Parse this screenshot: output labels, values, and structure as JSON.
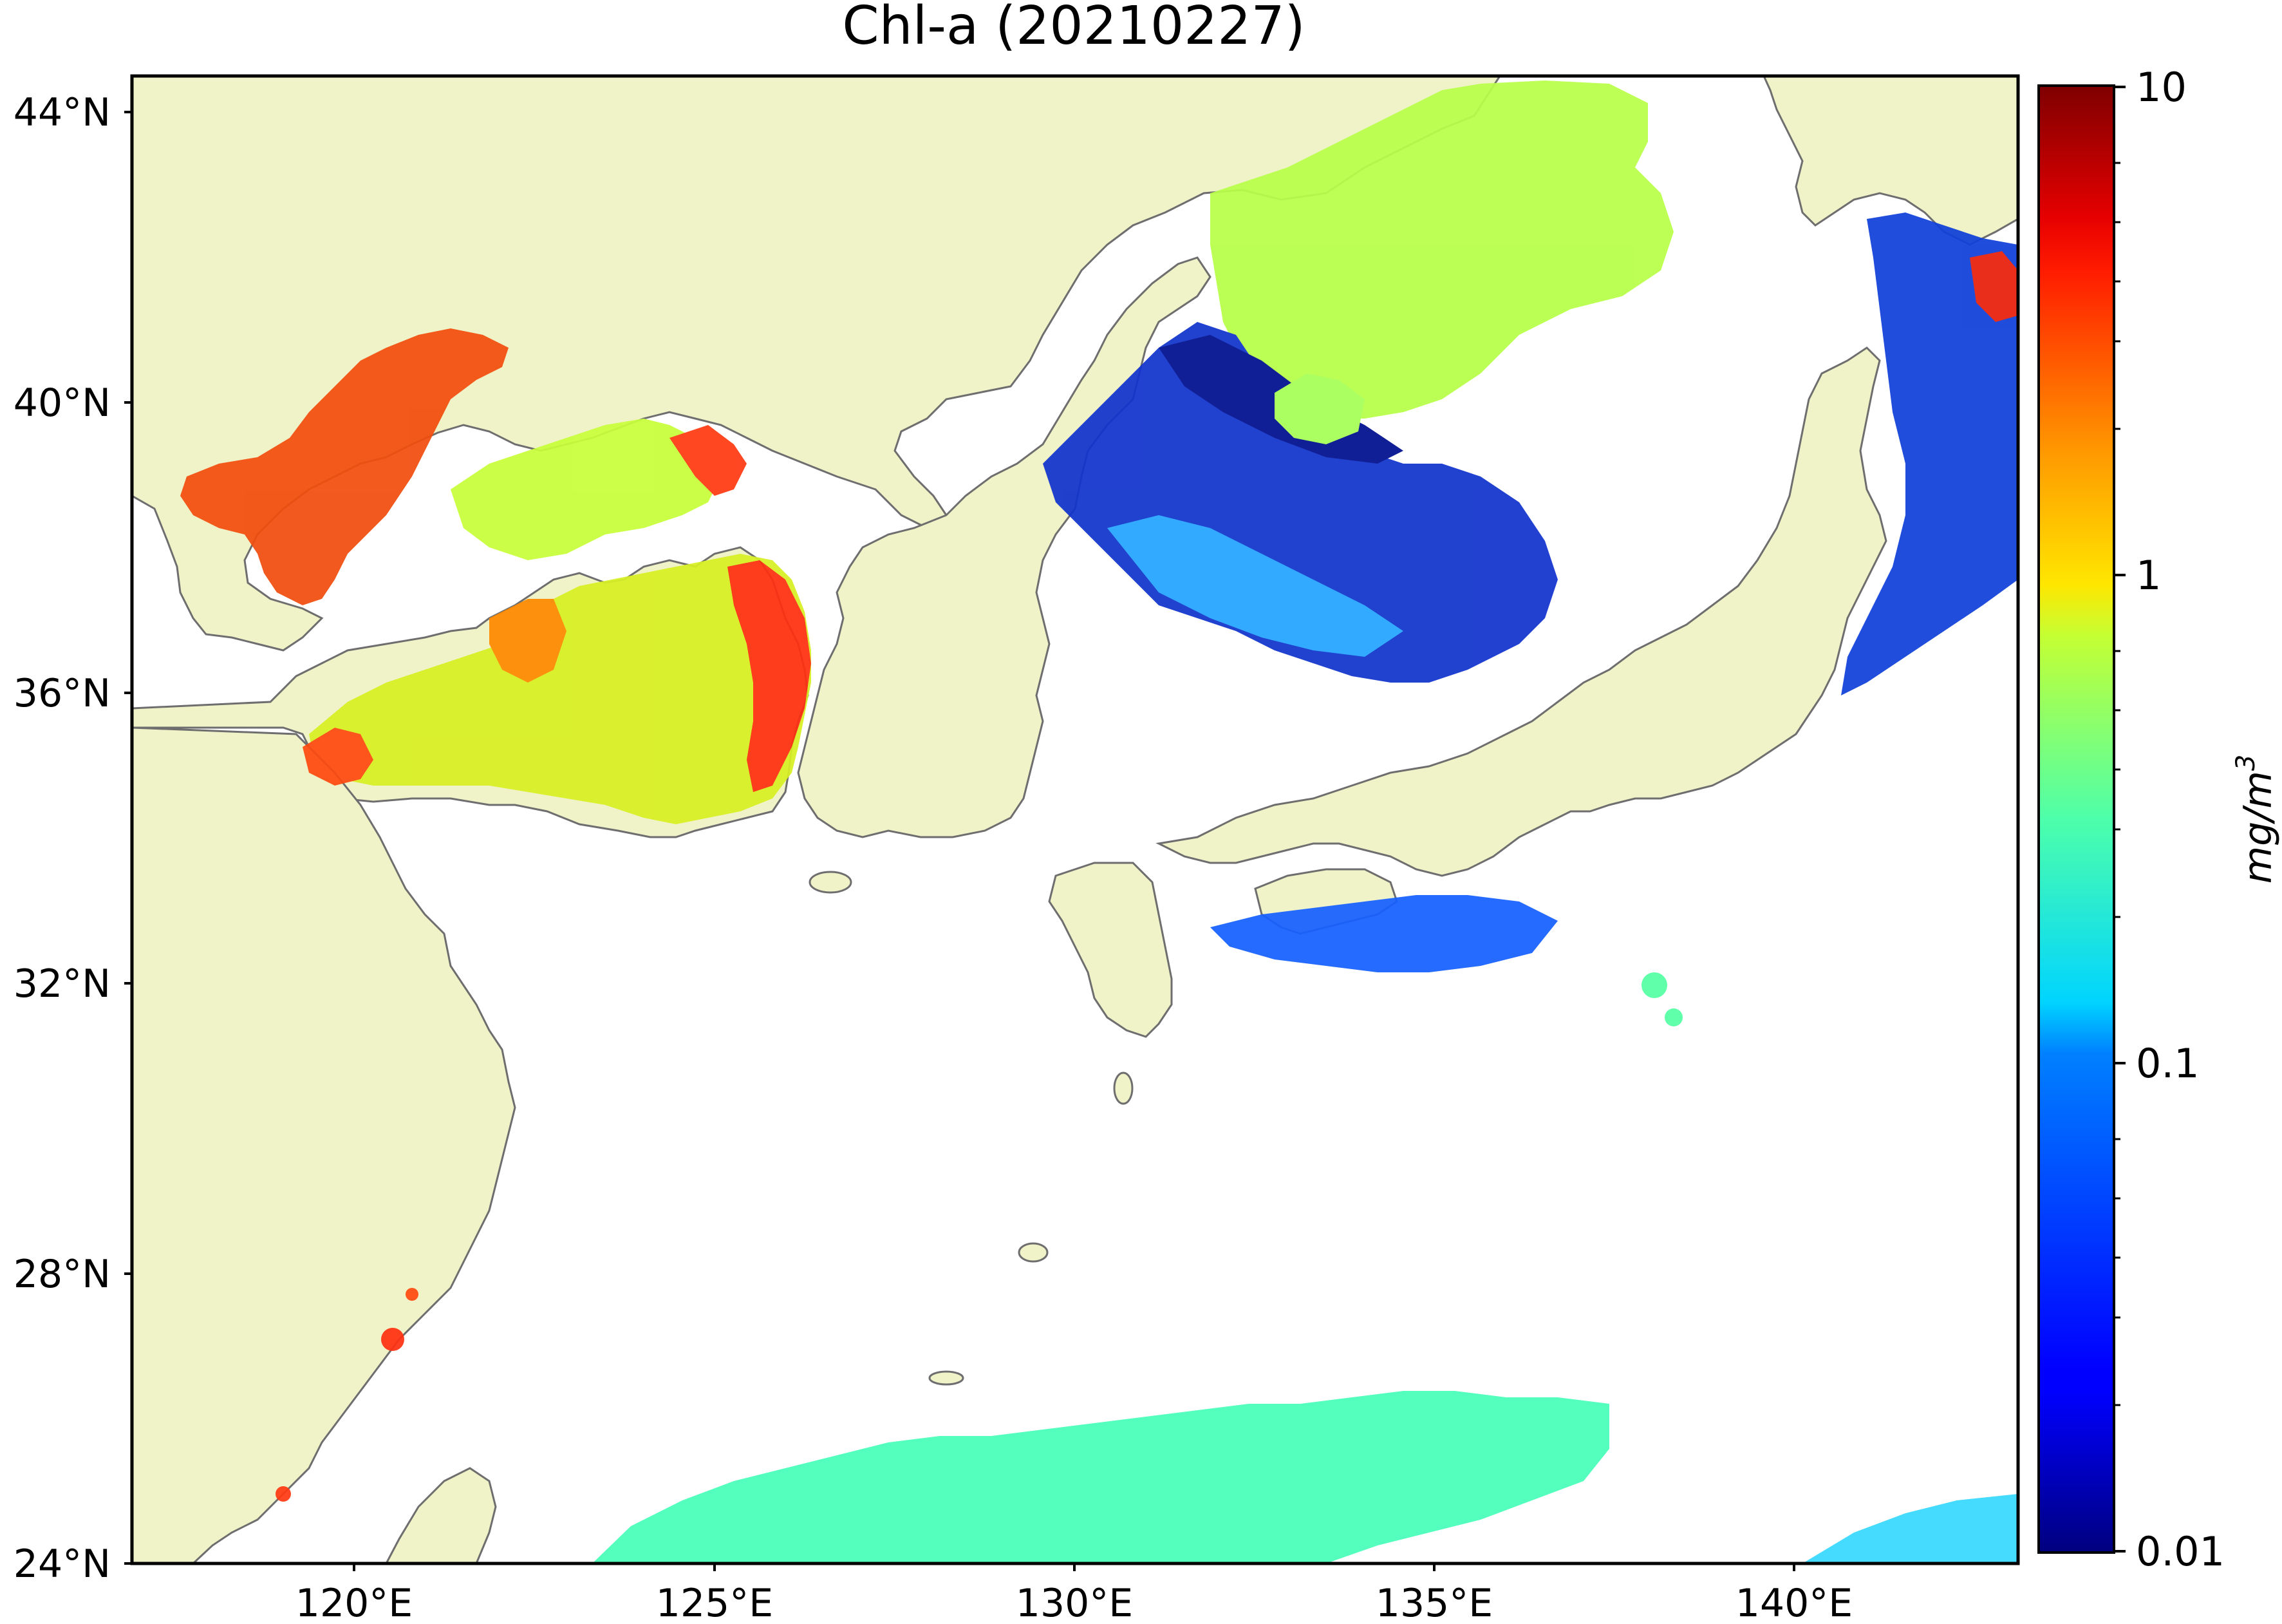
{
  "title": "Chl-a (20210227)",
  "lat_labels": [
    "44°N",
    "40°N",
    "36°N",
    "32°N",
    "28°N",
    "24°N"
  ],
  "lon_labels": [
    "120°E",
    "125°E",
    "130°E",
    "135°E",
    "140°E"
  ],
  "colorbar": {
    "label_base": "mg/m",
    "label_exp": "3",
    "scale": "log",
    "range": [
      0.01,
      10
    ],
    "tick_labels": [
      "10",
      "1",
      "0.1",
      "0.01"
    ],
    "colormap": "jet"
  },
  "colors": {
    "land": "#f0f2c8",
    "coast": "#6e6e6e",
    "nodata": "#ffffff",
    "frame": "#000000"
  }
}
